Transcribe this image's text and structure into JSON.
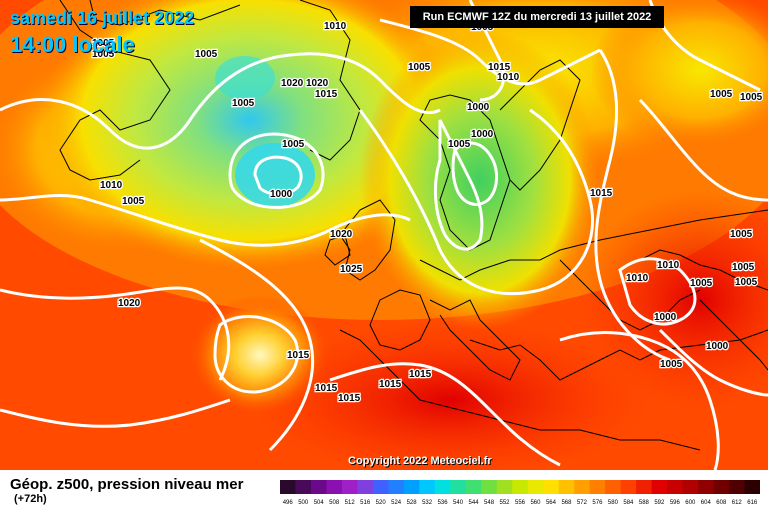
{
  "header": {
    "date_line": "samedi 16 juillet 2022",
    "time_line": "14:00 locale",
    "run_info": "Run ECMWF 12Z du mercredi 13 juillet 2022"
  },
  "map": {
    "copyright": "Copyright 2022 Meteociel.fr",
    "isobar_labels": [
      "1005",
      "1005",
      "1020",
      "1020",
      "1015",
      "1005",
      "1010",
      "1005",
      "1005",
      "1015",
      "1010",
      "1000",
      "1000",
      "1005",
      "1015",
      "1005",
      "1000",
      "1005",
      "1010",
      "1020",
      "1025",
      "1020",
      "1015",
      "1015",
      "1015",
      "1015",
      "1015",
      "1005",
      "1010",
      "1010",
      "1005",
      "1000",
      "1005",
      "1000",
      "1005",
      "1005",
      "1005",
      "1005",
      "1005"
    ]
  },
  "footer": {
    "title": "Géop. z500, pression niveau mer",
    "lead": "(+72h)"
  },
  "legend": {
    "ticks": [
      "496",
      "500",
      "504",
      "508",
      "512",
      "516",
      "520",
      "524",
      "528",
      "532",
      "536",
      "540",
      "544",
      "548",
      "552",
      "556",
      "560",
      "564",
      "568",
      "572",
      "576",
      "580",
      "584",
      "588",
      "592",
      "596",
      "600",
      "604",
      "608",
      "612",
      "616"
    ],
    "colors": [
      "#2a0a2a",
      "#4a0a5a",
      "#6a0a8a",
      "#8a10b0",
      "#a020c8",
      "#8040e0",
      "#4060ff",
      "#2080ff",
      "#00a0ff",
      "#00c8ff",
      "#00e0e0",
      "#20e0a0",
      "#40e070",
      "#70e040",
      "#a0e020",
      "#c8e800",
      "#e8e800",
      "#ffe000",
      "#ffc000",
      "#ffa000",
      "#ff8000",
      "#ff6000",
      "#ff4000",
      "#f02000",
      "#e00000",
      "#c80000",
      "#b00000",
      "#900000",
      "#700000",
      "#500000",
      "#2a0000"
    ]
  }
}
